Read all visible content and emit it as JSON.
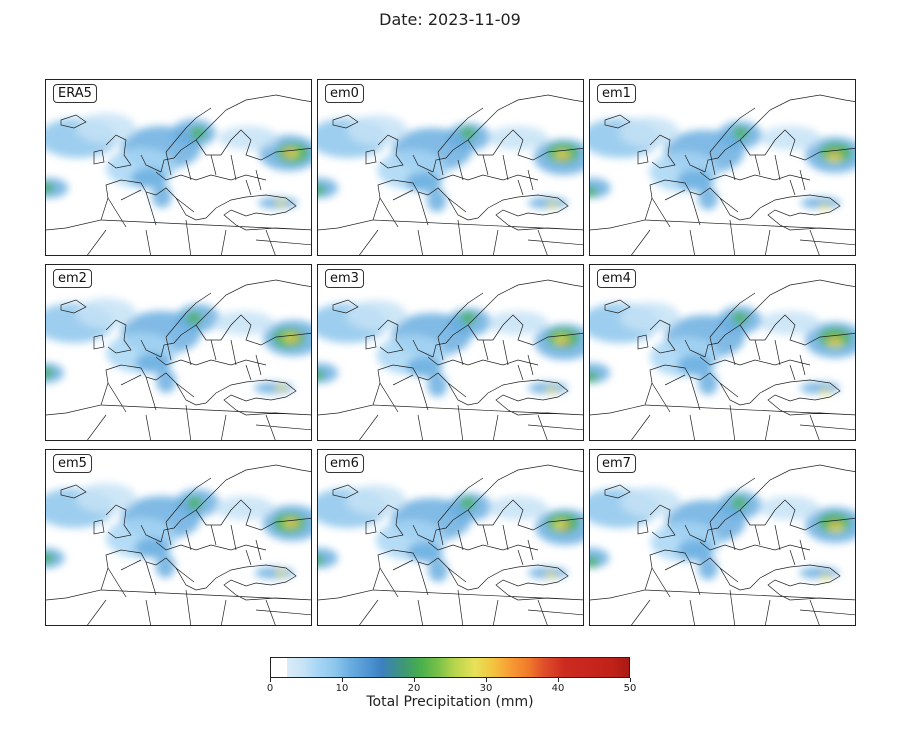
{
  "title": "Date: 2023-11-09",
  "panels": [
    {
      "label": "ERA5"
    },
    {
      "label": "em0"
    },
    {
      "label": "em1"
    },
    {
      "label": "em2"
    },
    {
      "label": "em3"
    },
    {
      "label": "em4"
    },
    {
      "label": "em5"
    },
    {
      "label": "em6"
    },
    {
      "label": "em7"
    }
  ],
  "colorbar": {
    "label": "Total Precipitation (mm)",
    "min": 0,
    "max": 50,
    "ticks": [
      "0",
      "10",
      "20",
      "30",
      "40",
      "50"
    ],
    "colormap": [
      "#ffffff",
      "#c6e3f6",
      "#6aaee0",
      "#3e7fbf",
      "#3f9c6c",
      "#49b04a",
      "#b3d44c",
      "#e8e15a",
      "#f89a35",
      "#e0502a",
      "#c12218"
    ]
  }
}
